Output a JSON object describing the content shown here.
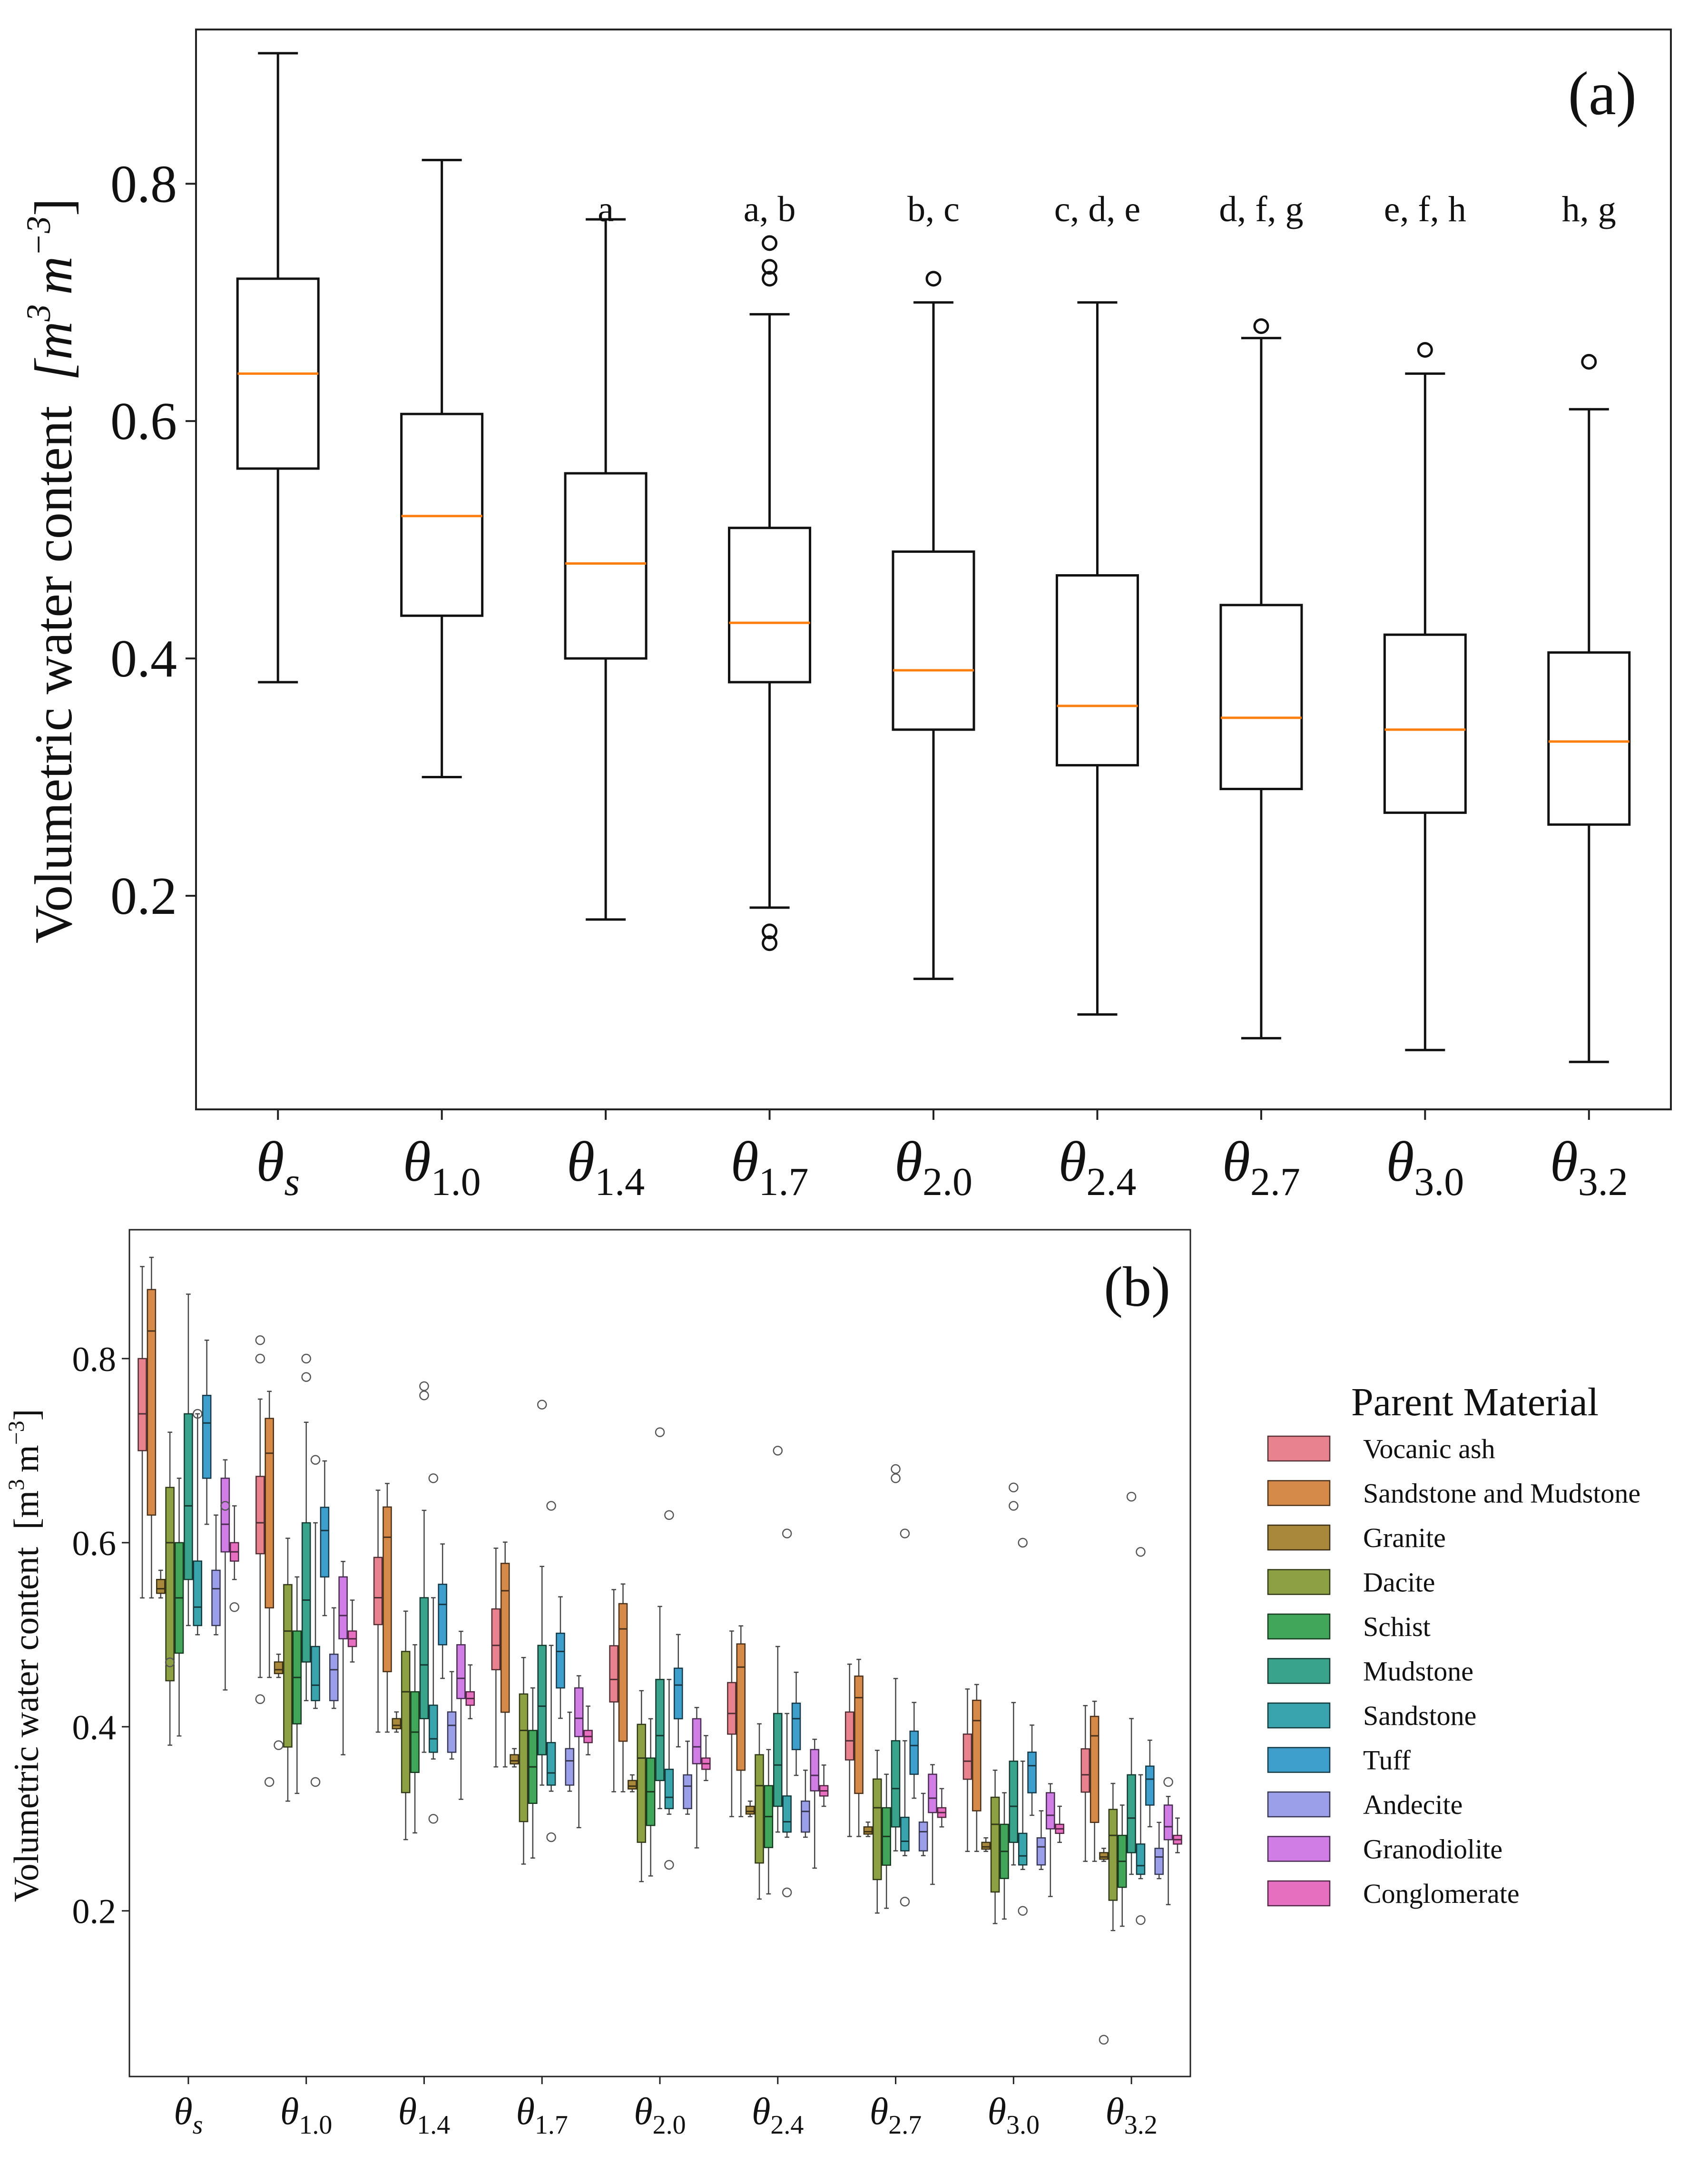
{
  "panel_a": {
    "panel_label": "(a)",
    "ylabel": "Volumetric water content",
    "ylabel_unit_base": "m",
    "ylabel_unit_exp": "3",
    "ylabel_unit_base2": "m",
    "ylabel_unit_exp2": "−3",
    "median_color": "#ff7f0e",
    "chart_data": {
      "type": "box",
      "ylim": [
        0.02,
        0.93
      ],
      "yticks": [
        0.2,
        0.4,
        0.6,
        0.8
      ],
      "ytick_labels": [
        "0.2",
        "0.4",
        "0.6",
        "0.8"
      ],
      "categories": [
        {
          "sym": "θ",
          "sub": "s",
          "italic_sub": true
        },
        {
          "sym": "θ",
          "sub": "1.0"
        },
        {
          "sym": "θ",
          "sub": "1.4"
        },
        {
          "sym": "θ",
          "sub": "1.7"
        },
        {
          "sym": "θ",
          "sub": "2.0"
        },
        {
          "sym": "θ",
          "sub": "2.4"
        },
        {
          "sym": "θ",
          "sub": "2.7"
        },
        {
          "sym": "θ",
          "sub": "3.0"
        },
        {
          "sym": "θ",
          "sub": "3.2"
        }
      ],
      "letters": [
        "",
        "",
        "a",
        "a, b",
        "b, c",
        "c, d, e",
        "d, f, g",
        "e, f, h",
        "h, g"
      ],
      "boxes": [
        {
          "wlo": 0.38,
          "q1": 0.56,
          "med": 0.64,
          "q3": 0.72,
          "whi": 0.91,
          "outliers": []
        },
        {
          "wlo": 0.3,
          "q1": 0.436,
          "med": 0.52,
          "q3": 0.606,
          "whi": 0.82,
          "outliers": []
        },
        {
          "wlo": 0.18,
          "q1": 0.4,
          "med": 0.48,
          "q3": 0.556,
          "whi": 0.77,
          "outliers": []
        },
        {
          "wlo": 0.19,
          "q1": 0.38,
          "med": 0.43,
          "q3": 0.51,
          "whi": 0.69,
          "outliers": [
            0.72,
            0.73,
            0.75,
            0.16,
            0.17
          ]
        },
        {
          "wlo": 0.13,
          "q1": 0.34,
          "med": 0.39,
          "q3": 0.49,
          "whi": 0.7,
          "outliers": [
            0.72
          ]
        },
        {
          "wlo": 0.1,
          "q1": 0.31,
          "med": 0.36,
          "q3": 0.47,
          "whi": 0.7,
          "outliers": []
        },
        {
          "wlo": 0.08,
          "q1": 0.29,
          "med": 0.35,
          "q3": 0.445,
          "whi": 0.67,
          "outliers": [
            0.68
          ]
        },
        {
          "wlo": 0.07,
          "q1": 0.27,
          "med": 0.34,
          "q3": 0.42,
          "whi": 0.64,
          "outliers": [
            0.66
          ]
        },
        {
          "wlo": 0.06,
          "q1": 0.26,
          "med": 0.33,
          "q3": 0.405,
          "whi": 0.61,
          "outliers": [
            0.65
          ]
        }
      ]
    }
  },
  "panel_b": {
    "panel_label": "(b)",
    "ylabel": "Volumetric water content",
    "ylabel_unit_base": "m",
    "ylabel_unit_exp": "3",
    "ylabel_unit_base2": "m",
    "ylabel_unit_exp2": "−3",
    "legend_title": "Parent Material",
    "chart_data": {
      "type": "box",
      "ylim": [
        0.02,
        0.94
      ],
      "yticks": [
        0.2,
        0.4,
        0.6,
        0.8
      ],
      "ytick_labels": [
        "0.2",
        "0.4",
        "0.6",
        "0.8"
      ],
      "categories": [
        {
          "sym": "θ",
          "sub": "s",
          "italic_sub": true
        },
        {
          "sym": "θ",
          "sub": "1.0"
        },
        {
          "sym": "θ",
          "sub": "1.4"
        },
        {
          "sym": "θ",
          "sub": "1.7"
        },
        {
          "sym": "θ",
          "sub": "2.0"
        },
        {
          "sym": "θ",
          "sub": "2.4"
        },
        {
          "sym": "θ",
          "sub": "2.7"
        },
        {
          "sym": "θ",
          "sub": "3.0"
        },
        {
          "sym": "θ",
          "sub": "3.2"
        }
      ],
      "legend_placement": "right",
      "series": [
        {
          "name": "Vocanic ash",
          "color": "#e8828e",
          "base": [
            0.54,
            0.7,
            0.74,
            0.8,
            0.9
          ]
        },
        {
          "name": "Sandstone and Mudstone",
          "color": "#d58a4a",
          "base": [
            0.54,
            0.63,
            0.83,
            0.875,
            0.91
          ]
        },
        {
          "name": "Granite",
          "color": "#a8893c",
          "base": [
            0.54,
            0.545,
            0.55,
            0.56,
            0.57
          ]
        },
        {
          "name": "Dacite",
          "color": "#8da043",
          "base": [
            0.38,
            0.45,
            0.6,
            0.66,
            0.72
          ]
        },
        {
          "name": "Schist",
          "color": "#42a65a",
          "base": [
            0.39,
            0.48,
            0.54,
            0.6,
            0.67
          ]
        },
        {
          "name": "Mudstone",
          "color": "#3aa38c",
          "base": [
            0.51,
            0.56,
            0.64,
            0.74,
            0.87
          ]
        },
        {
          "name": "Sandstone",
          "color": "#3aa4ad",
          "base": [
            0.5,
            0.51,
            0.53,
            0.58,
            0.74
          ]
        },
        {
          "name": "Tuff",
          "color": "#3f9fcc",
          "base": [
            0.62,
            0.67,
            0.73,
            0.76,
            0.82
          ]
        },
        {
          "name": "Andecite",
          "color": "#9b9ee8",
          "base": [
            0.5,
            0.51,
            0.55,
            0.57,
            0.63
          ]
        },
        {
          "name": "Granodiolite",
          "color": "#d07ee6",
          "base": [
            0.44,
            0.59,
            0.62,
            0.67,
            0.69
          ]
        },
        {
          "name": "Conglomerate",
          "color": "#e66fc0",
          "base": [
            0.56,
            0.58,
            0.59,
            0.6,
            0.64
          ]
        }
      ],
      "decline_per_category": [
        1.0,
        0.84,
        0.73,
        0.66,
        0.61,
        0.56,
        0.52,
        0.49,
        0.47
      ],
      "outliers": [
        {
          "cat": 0,
          "series": 3,
          "values": [
            0.47
          ]
        },
        {
          "cat": 0,
          "series": 6,
          "values": [
            0.74
          ]
        },
        {
          "cat": 0,
          "series": 9,
          "values": [
            0.64
          ]
        },
        {
          "cat": 0,
          "series": 10,
          "values": [
            0.53
          ]
        },
        {
          "cat": 1,
          "series": 0,
          "values": [
            0.82,
            0.8,
            0.43
          ]
        },
        {
          "cat": 1,
          "series": 2,
          "values": [
            0.38
          ]
        },
        {
          "cat": 1,
          "series": 1,
          "values": [
            0.34
          ]
        },
        {
          "cat": 1,
          "series": 5,
          "values": [
            0.8,
            0.78
          ]
        },
        {
          "cat": 1,
          "series": 6,
          "values": [
            0.69,
            0.34
          ]
        },
        {
          "cat": 2,
          "series": 5,
          "values": [
            0.77,
            0.76
          ]
        },
        {
          "cat": 2,
          "series": 6,
          "values": [
            0.67
          ]
        },
        {
          "cat": 2,
          "series": 6,
          "values": [
            0.3
          ]
        },
        {
          "cat": 3,
          "series": 5,
          "values": [
            0.75
          ]
        },
        {
          "cat": 3,
          "series": 6,
          "values": [
            0.64,
            0.28
          ]
        },
        {
          "cat": 4,
          "series": 5,
          "values": [
            0.72
          ]
        },
        {
          "cat": 4,
          "series": 6,
          "values": [
            0.63,
            0.25
          ]
        },
        {
          "cat": 5,
          "series": 5,
          "values": [
            0.7
          ]
        },
        {
          "cat": 5,
          "series": 6,
          "values": [
            0.61,
            0.22
          ]
        },
        {
          "cat": 6,
          "series": 5,
          "values": [
            0.68,
            0.67
          ]
        },
        {
          "cat": 6,
          "series": 6,
          "values": [
            0.61,
            0.21
          ]
        },
        {
          "cat": 7,
          "series": 5,
          "values": [
            0.66,
            0.64
          ]
        },
        {
          "cat": 7,
          "series": 6,
          "values": [
            0.6,
            0.2
          ]
        },
        {
          "cat": 8,
          "series": 5,
          "values": [
            0.65
          ]
        },
        {
          "cat": 8,
          "series": 6,
          "values": [
            0.59,
            0.19
          ]
        },
        {
          "cat": 8,
          "series": 9,
          "values": [
            0.34
          ]
        },
        {
          "cat": 8,
          "series": 2,
          "values": [
            0.06
          ]
        }
      ]
    }
  }
}
